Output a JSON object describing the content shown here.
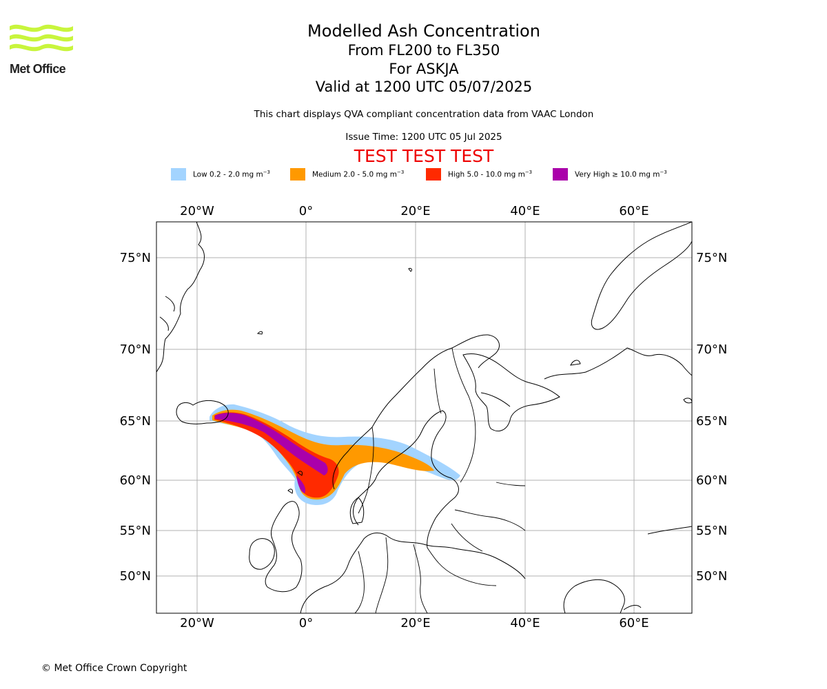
{
  "logo": {
    "text": "Met Office",
    "color": "#c8f53c"
  },
  "title": {
    "main": "Modelled Ash Concentration",
    "levels": "From FL200 to FL350",
    "volcano": "For ASKJA",
    "valid": "Valid at 1200 UTC 05/07/2025"
  },
  "description": "This chart displays QVA compliant concentration data from VAAC London",
  "issue_time": "Issue Time: 1200 UTC 05 Jul 2025",
  "test_banner": "TEST TEST TEST",
  "legend": [
    {
      "label": "Low 0.2 - 2.0 mg m",
      "color": "#a3d4ff"
    },
    {
      "label": "Medium 2.0 - 5.0 mg m",
      "color": "#ff9900"
    },
    {
      "label": "High 5.0 - 10.0 mg m",
      "color": "#ff2a00"
    },
    {
      "label": "Very High ≥ 10.0 mg m",
      "color": "#aa00aa"
    }
  ],
  "legend_unit_exponent": "−3",
  "map": {
    "lon_ticks": [
      "20°W",
      "0°",
      "20°E",
      "40°E",
      "60°E"
    ],
    "lat_ticks": [
      "75°N",
      "70°N",
      "65°N",
      "60°N",
      "55°N",
      "50°N"
    ],
    "ash_levels": [
      "low",
      "medium",
      "high",
      "very high"
    ]
  },
  "copyright": "© Met Office Crown Copyright"
}
